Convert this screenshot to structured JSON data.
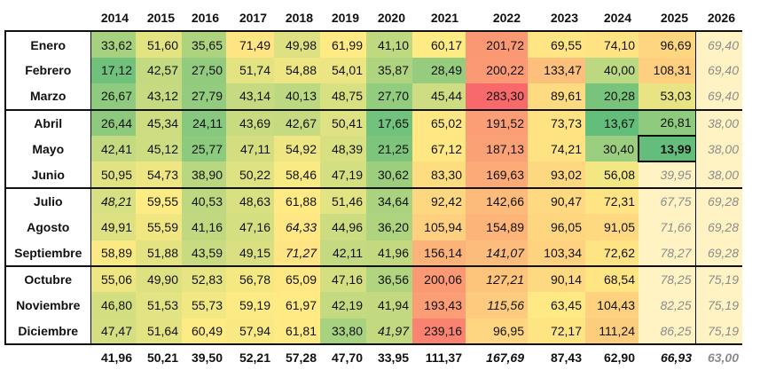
{
  "years": [
    "2014",
    "2015",
    "2016",
    "2017",
    "2018",
    "2019",
    "2020",
    "2021",
    "2022",
    "2023",
    "2024",
    "2025",
    "2026"
  ],
  "rows": [
    {
      "month": "Enero",
      "values": [
        "33,62",
        "51,60",
        "35,65",
        "71,49",
        "49,98",
        "61,99",
        "41,10",
        "60,17",
        "201,72",
        "69,55",
        "74,10",
        "96,69",
        "69,40"
      ],
      "n": [
        33.62,
        51.6,
        35.65,
        71.49,
        49.98,
        61.99,
        41.1,
        60.17,
        201.72,
        69.55,
        74.1,
        96.69,
        null
      ]
    },
    {
      "month": "Febrero",
      "values": [
        "17,12",
        "42,57",
        "27,50",
        "51,74",
        "54,88",
        "54,01",
        "35,87",
        "28,49",
        "200,22",
        "133,47",
        "40,00",
        "108,31",
        "69,40"
      ],
      "n": [
        17.12,
        42.57,
        27.5,
        51.74,
        54.88,
        54.01,
        35.87,
        28.49,
        200.22,
        133.47,
        40.0,
        108.31,
        null
      ]
    },
    {
      "month": "Marzo",
      "values": [
        "26,67",
        "43,12",
        "27,79",
        "43,14",
        "40,13",
        "48,75",
        "27,70",
        "45,44",
        "283,30",
        "89,61",
        "20,28",
        "53,03",
        "69,40"
      ],
      "n": [
        26.67,
        43.12,
        27.79,
        43.14,
        40.13,
        48.75,
        27.7,
        45.44,
        283.3,
        89.61,
        20.28,
        53.03,
        null
      ]
    },
    {
      "month": "Abril",
      "values": [
        "26,44",
        "45,34",
        "24,11",
        "43,69",
        "42,67",
        "50,41",
        "17,65",
        "65,02",
        "191,52",
        "73,73",
        "13,67",
        "26,81",
        "38,00"
      ],
      "n": [
        26.44,
        45.34,
        24.11,
        43.69,
        42.67,
        50.41,
        17.65,
        65.02,
        191.52,
        73.73,
        13.67,
        26.81,
        null
      ]
    },
    {
      "month": "Mayo",
      "values": [
        "42,41",
        "45,12",
        "25,77",
        "47,11",
        "54,92",
        "48,39",
        "21,25",
        "67,12",
        "187,13",
        "74,21",
        "30,40",
        "13,99",
        "38,00"
      ],
      "n": [
        42.41,
        45.12,
        25.77,
        47.11,
        54.92,
        48.39,
        21.25,
        67.12,
        187.13,
        74.21,
        30.4,
        13.99,
        null
      ]
    },
    {
      "month": "Junio",
      "values": [
        "50,95",
        "54,73",
        "38,90",
        "50,22",
        "58,46",
        "47,19",
        "30,62",
        "83,30",
        "169,63",
        "93,02",
        "56,08",
        "39,95",
        "38,00"
      ],
      "n": [
        50.95,
        54.73,
        38.9,
        50.22,
        58.46,
        47.19,
        30.62,
        83.3,
        169.63,
        93.02,
        56.08,
        null,
        null
      ]
    },
    {
      "month": "Julio",
      "values": [
        "48,21",
        "59,55",
        "40,53",
        "48,63",
        "61,88",
        "51,46",
        "34,64",
        "92,42",
        "142,66",
        "90,47",
        "72,31",
        "67,75",
        "69,28"
      ],
      "n": [
        48.21,
        59.55,
        40.53,
        48.63,
        61.88,
        51.46,
        34.64,
        92.42,
        142.66,
        90.47,
        72.31,
        null,
        null
      ]
    },
    {
      "month": "Agosto",
      "values": [
        "49,91",
        "55,59",
        "41,16",
        "47,16",
        "64,33",
        "44,96",
        "36,20",
        "105,94",
        "154,89",
        "96,05",
        "91,05",
        "71,66",
        "69,28"
      ],
      "n": [
        49.91,
        55.59,
        41.16,
        47.16,
        64.33,
        44.96,
        36.2,
        105.94,
        154.89,
        96.05,
        91.05,
        null,
        null
      ]
    },
    {
      "month": "Septiembre",
      "values": [
        "58,89",
        "51,88",
        "43,59",
        "49,15",
        "71,27",
        "42,11",
        "41,96",
        "156,14",
        "141,07",
        "103,34",
        "72,62",
        "78,27",
        "69,28"
      ],
      "n": [
        58.89,
        51.88,
        43.59,
        49.15,
        71.27,
        42.11,
        41.96,
        156.14,
        141.07,
        103.34,
        72.62,
        null,
        null
      ]
    },
    {
      "month": "Octubre",
      "values": [
        "55,06",
        "49,90",
        "52,83",
        "56,78",
        "65,09",
        "47,16",
        "36,56",
        "200,06",
        "127,21",
        "90,14",
        "68,54",
        "78,25",
        "75,19"
      ],
      "n": [
        55.06,
        49.9,
        52.83,
        56.78,
        65.09,
        47.16,
        36.56,
        200.06,
        127.21,
        90.14,
        68.54,
        null,
        null
      ]
    },
    {
      "month": "Noviembre",
      "values": [
        "46,80",
        "51,53",
        "55,73",
        "59,19",
        "61,97",
        "42,19",
        "41,94",
        "193,43",
        "115,56",
        "63,45",
        "104,43",
        "82,25",
        "75,19"
      ],
      "n": [
        46.8,
        51.53,
        55.73,
        59.19,
        61.97,
        42.19,
        41.94,
        193.43,
        115.56,
        63.45,
        104.43,
        null,
        null
      ]
    },
    {
      "month": "Diciembre",
      "values": [
        "47,47",
        "51,64",
        "60,49",
        "57,94",
        "61,81",
        "33,80",
        "41,97",
        "239,16",
        "96,95",
        "72,17",
        "111,24",
        "86,25",
        "75,19"
      ],
      "n": [
        47.47,
        51.64,
        60.49,
        57.94,
        61.81,
        33.8,
        41.97,
        239.16,
        96.95,
        72.17,
        111.24,
        null,
        null
      ]
    }
  ],
  "totals": [
    "41,96",
    "50,21",
    "39,50",
    "52,21",
    "57,28",
    "47,70",
    "33,95",
    "111,37",
    "167,69",
    "87,43",
    "62,90",
    "66,93",
    "63,00"
  ],
  "italic_cells": [
    "6-0",
    "7-4",
    "8-4",
    "11-6",
    "8-8",
    "9-8",
    "10-8"
  ],
  "projected_cells": [
    "5-11",
    "6-11",
    "7-11",
    "8-11",
    "9-11",
    "10-11",
    "11-11",
    "0-12",
    "1-12",
    "2-12",
    "3-12",
    "4-12",
    "5-12",
    "6-12",
    "7-12",
    "8-12",
    "9-12",
    "10-12",
    "11-12"
  ],
  "highlight_cell": "4-11",
  "colors": {
    "green": "#63be7b",
    "yellow": "#ffeb84",
    "red": "#f8696b",
    "projected_bg": "#fff3c4",
    "border": "#111111"
  }
}
